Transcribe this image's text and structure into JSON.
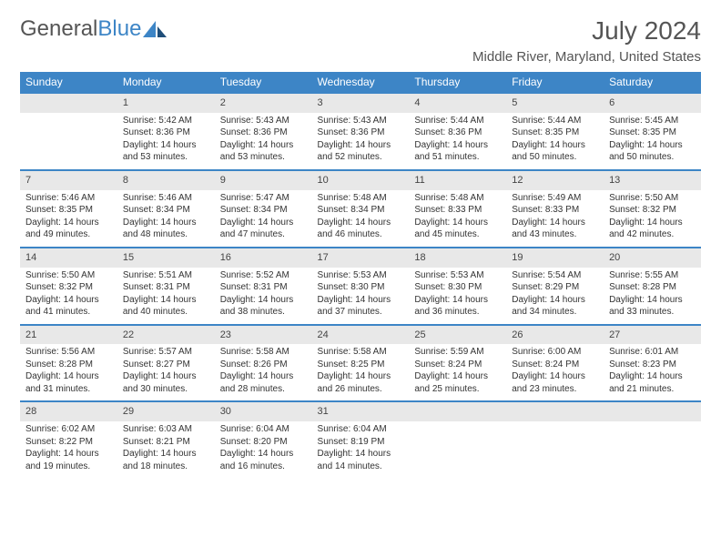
{
  "brand": {
    "part1": "General",
    "part2": "Blue"
  },
  "title": "July 2024",
  "location": "Middle River, Maryland, United States",
  "colors": {
    "accent": "#3d85c6",
    "row_bg": "#e8e8e8",
    "text": "#333333"
  },
  "weekdays": [
    "Sunday",
    "Monday",
    "Tuesday",
    "Wednesday",
    "Thursday",
    "Friday",
    "Saturday"
  ],
  "weeks": [
    [
      null,
      {
        "n": "1",
        "sun": "Sunrise: 5:42 AM",
        "set": "Sunset: 8:36 PM",
        "day": "Daylight: 14 hours and 53 minutes."
      },
      {
        "n": "2",
        "sun": "Sunrise: 5:43 AM",
        "set": "Sunset: 8:36 PM",
        "day": "Daylight: 14 hours and 53 minutes."
      },
      {
        "n": "3",
        "sun": "Sunrise: 5:43 AM",
        "set": "Sunset: 8:36 PM",
        "day": "Daylight: 14 hours and 52 minutes."
      },
      {
        "n": "4",
        "sun": "Sunrise: 5:44 AM",
        "set": "Sunset: 8:36 PM",
        "day": "Daylight: 14 hours and 51 minutes."
      },
      {
        "n": "5",
        "sun": "Sunrise: 5:44 AM",
        "set": "Sunset: 8:35 PM",
        "day": "Daylight: 14 hours and 50 minutes."
      },
      {
        "n": "6",
        "sun": "Sunrise: 5:45 AM",
        "set": "Sunset: 8:35 PM",
        "day": "Daylight: 14 hours and 50 minutes."
      }
    ],
    [
      {
        "n": "7",
        "sun": "Sunrise: 5:46 AM",
        "set": "Sunset: 8:35 PM",
        "day": "Daylight: 14 hours and 49 minutes."
      },
      {
        "n": "8",
        "sun": "Sunrise: 5:46 AM",
        "set": "Sunset: 8:34 PM",
        "day": "Daylight: 14 hours and 48 minutes."
      },
      {
        "n": "9",
        "sun": "Sunrise: 5:47 AM",
        "set": "Sunset: 8:34 PM",
        "day": "Daylight: 14 hours and 47 minutes."
      },
      {
        "n": "10",
        "sun": "Sunrise: 5:48 AM",
        "set": "Sunset: 8:34 PM",
        "day": "Daylight: 14 hours and 46 minutes."
      },
      {
        "n": "11",
        "sun": "Sunrise: 5:48 AM",
        "set": "Sunset: 8:33 PM",
        "day": "Daylight: 14 hours and 45 minutes."
      },
      {
        "n": "12",
        "sun": "Sunrise: 5:49 AM",
        "set": "Sunset: 8:33 PM",
        "day": "Daylight: 14 hours and 43 minutes."
      },
      {
        "n": "13",
        "sun": "Sunrise: 5:50 AM",
        "set": "Sunset: 8:32 PM",
        "day": "Daylight: 14 hours and 42 minutes."
      }
    ],
    [
      {
        "n": "14",
        "sun": "Sunrise: 5:50 AM",
        "set": "Sunset: 8:32 PM",
        "day": "Daylight: 14 hours and 41 minutes."
      },
      {
        "n": "15",
        "sun": "Sunrise: 5:51 AM",
        "set": "Sunset: 8:31 PM",
        "day": "Daylight: 14 hours and 40 minutes."
      },
      {
        "n": "16",
        "sun": "Sunrise: 5:52 AM",
        "set": "Sunset: 8:31 PM",
        "day": "Daylight: 14 hours and 38 minutes."
      },
      {
        "n": "17",
        "sun": "Sunrise: 5:53 AM",
        "set": "Sunset: 8:30 PM",
        "day": "Daylight: 14 hours and 37 minutes."
      },
      {
        "n": "18",
        "sun": "Sunrise: 5:53 AM",
        "set": "Sunset: 8:30 PM",
        "day": "Daylight: 14 hours and 36 minutes."
      },
      {
        "n": "19",
        "sun": "Sunrise: 5:54 AM",
        "set": "Sunset: 8:29 PM",
        "day": "Daylight: 14 hours and 34 minutes."
      },
      {
        "n": "20",
        "sun": "Sunrise: 5:55 AM",
        "set": "Sunset: 8:28 PM",
        "day": "Daylight: 14 hours and 33 minutes."
      }
    ],
    [
      {
        "n": "21",
        "sun": "Sunrise: 5:56 AM",
        "set": "Sunset: 8:28 PM",
        "day": "Daylight: 14 hours and 31 minutes."
      },
      {
        "n": "22",
        "sun": "Sunrise: 5:57 AM",
        "set": "Sunset: 8:27 PM",
        "day": "Daylight: 14 hours and 30 minutes."
      },
      {
        "n": "23",
        "sun": "Sunrise: 5:58 AM",
        "set": "Sunset: 8:26 PM",
        "day": "Daylight: 14 hours and 28 minutes."
      },
      {
        "n": "24",
        "sun": "Sunrise: 5:58 AM",
        "set": "Sunset: 8:25 PM",
        "day": "Daylight: 14 hours and 26 minutes."
      },
      {
        "n": "25",
        "sun": "Sunrise: 5:59 AM",
        "set": "Sunset: 8:24 PM",
        "day": "Daylight: 14 hours and 25 minutes."
      },
      {
        "n": "26",
        "sun": "Sunrise: 6:00 AM",
        "set": "Sunset: 8:24 PM",
        "day": "Daylight: 14 hours and 23 minutes."
      },
      {
        "n": "27",
        "sun": "Sunrise: 6:01 AM",
        "set": "Sunset: 8:23 PM",
        "day": "Daylight: 14 hours and 21 minutes."
      }
    ],
    [
      {
        "n": "28",
        "sun": "Sunrise: 6:02 AM",
        "set": "Sunset: 8:22 PM",
        "day": "Daylight: 14 hours and 19 minutes."
      },
      {
        "n": "29",
        "sun": "Sunrise: 6:03 AM",
        "set": "Sunset: 8:21 PM",
        "day": "Daylight: 14 hours and 18 minutes."
      },
      {
        "n": "30",
        "sun": "Sunrise: 6:04 AM",
        "set": "Sunset: 8:20 PM",
        "day": "Daylight: 14 hours and 16 minutes."
      },
      {
        "n": "31",
        "sun": "Sunrise: 6:04 AM",
        "set": "Sunset: 8:19 PM",
        "day": "Daylight: 14 hours and 14 minutes."
      },
      null,
      null,
      null
    ]
  ]
}
